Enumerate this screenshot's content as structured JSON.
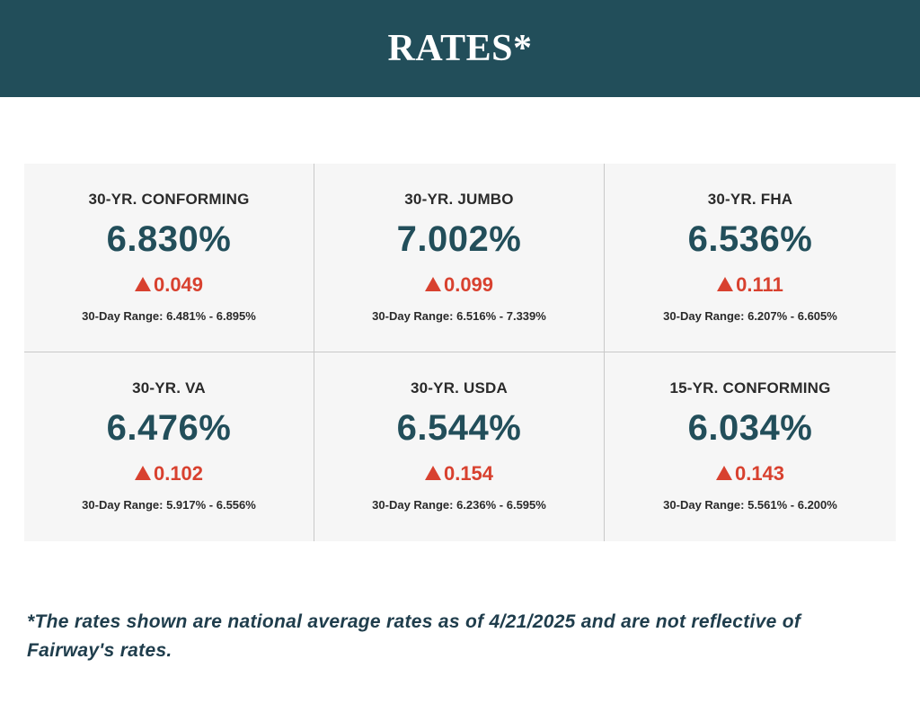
{
  "header": {
    "title": "RATES*"
  },
  "rates": [
    {
      "title": "30-YR. CONFORMING",
      "rate": "6.830%",
      "change": "0.049",
      "range": "30-Day Range: 6.481% - 6.895%"
    },
    {
      "title": "30-YR. JUMBO",
      "rate": "7.002%",
      "change": "0.099",
      "range": "30-Day Range: 6.516% - 7.339%"
    },
    {
      "title": "30-YR. FHA",
      "rate": "6.536%",
      "change": "0.111",
      "range": "30-Day Range: 6.207% - 6.605%"
    },
    {
      "title": "30-YR. VA",
      "rate": "6.476%",
      "change": "0.102",
      "range": "30-Day Range: 5.917% - 6.556%"
    },
    {
      "title": "30-YR. USDA",
      "rate": "6.544%",
      "change": "0.154",
      "range": "30-Day Range: 6.236% - 6.595%"
    },
    {
      "title": "15-YR. CONFORMING",
      "rate": "6.034%",
      "change": "0.143",
      "range": "30-Day Range: 5.561% - 6.200%"
    }
  ],
  "icons": {
    "change_direction": "up-triangle-icon"
  },
  "colors": {
    "header_bg": "#224e5a",
    "rate_text": "#224e5a",
    "change_up": "#d8412f",
    "footnote_text": "#1f3d4c"
  },
  "footnote": {
    "text": "*The rates shown are national average rates as of 4/21/2025 and are not reflective of Fairway's rates."
  }
}
